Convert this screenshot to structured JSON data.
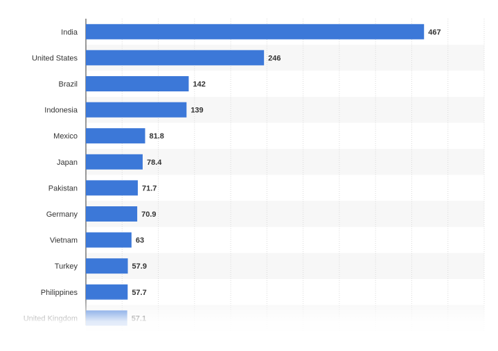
{
  "chart_data": {
    "type": "bar",
    "orientation": "horizontal",
    "categories": [
      "India",
      "United States",
      "Brazil",
      "Indonesia",
      "Mexico",
      "Japan",
      "Pakistan",
      "Germany",
      "Vietnam",
      "Turkey",
      "Philippines",
      "United Kingdom"
    ],
    "values": [
      467,
      246,
      142,
      139,
      81.8,
      78.4,
      71.7,
      70.9,
      63,
      57.9,
      57.7,
      57.1
    ],
    "value_labels": [
      "467",
      "246",
      "142",
      "139",
      "81.8",
      "78.4",
      "71.7",
      "70.9",
      "63",
      "57.9",
      "57.7",
      "57.1"
    ],
    "xlim": [
      0,
      550
    ],
    "grid": true,
    "bar_color": "#3c78d8",
    "stripe_color": "#f7f7f7"
  }
}
